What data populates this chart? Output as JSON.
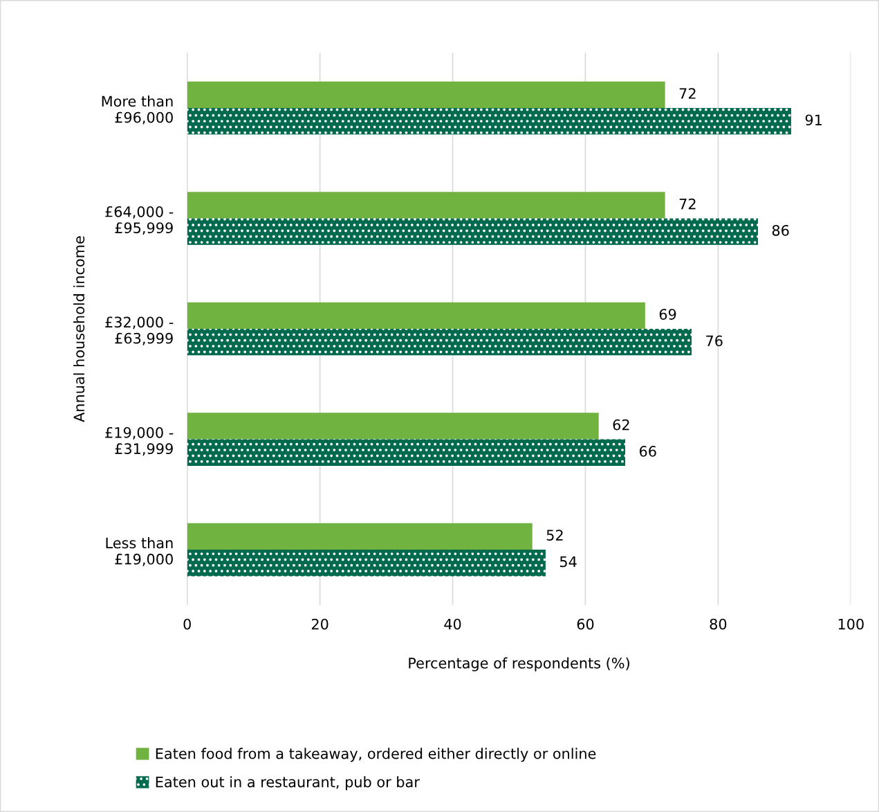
{
  "chart_data": {
    "type": "bar",
    "orientation": "horizontal",
    "categories": [
      "More than\n£96,000",
      "£64,000 -\n£95,999",
      "£32,000 -\n£63,999",
      "£19,000 -\n£31,999",
      "Less than\n£19,000"
    ],
    "series": [
      {
        "name": "Eaten food from a takeaway, ordered either directly or online",
        "color": "#70b340",
        "values": [
          72,
          72,
          69,
          62,
          52
        ]
      },
      {
        "name": "Eaten out in a restaurant, pub or bar",
        "color": "#006a4e",
        "values": [
          91,
          86,
          76,
          66,
          54
        ]
      }
    ],
    "xlabel": "Percentage of respondents (%)",
    "ylabel": "Annual household income",
    "xlim": [
      0,
      100
    ],
    "xticks": [
      0,
      20,
      40,
      60,
      80,
      100
    ],
    "grid": "x",
    "legend": "bottom",
    "data_labels": true
  }
}
